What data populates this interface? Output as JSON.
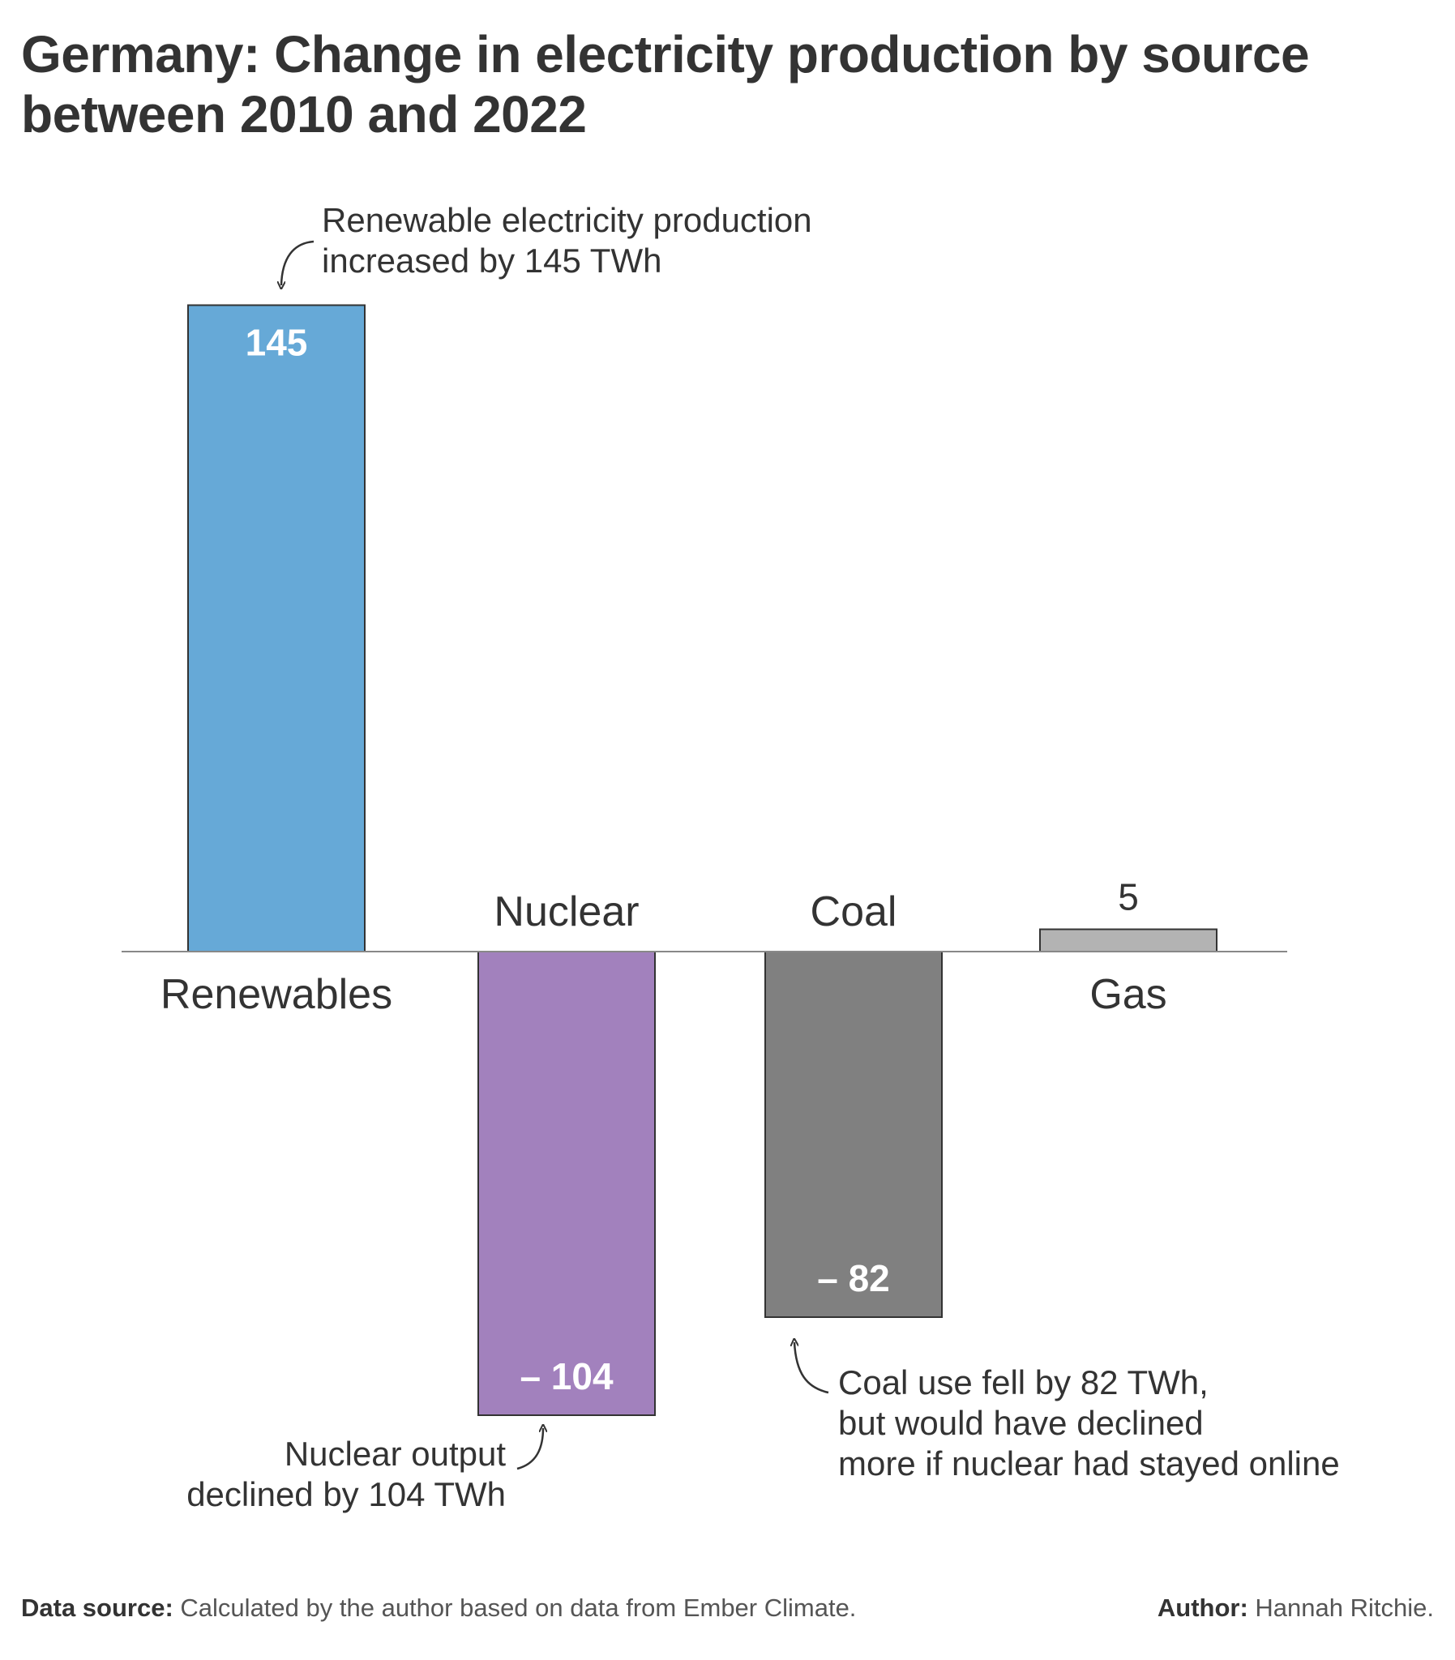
{
  "title": "Germany: Change in electricity production by source between 2010 and 2022",
  "chart_data": {
    "type": "bar",
    "categories": [
      "Renewables",
      "Nuclear",
      "Coal",
      "Gas"
    ],
    "values": [
      145,
      -104,
      -82,
      5
    ],
    "value_labels": [
      "145",
      "– 104",
      "– 82",
      "5"
    ],
    "unit": "TWh",
    "colors": [
      "#66a9d7",
      "#a281bd",
      "#808080",
      "#b3b3b3"
    ],
    "title": "Germany: Change in electricity production by source between 2010 and 2022",
    "xlabel": "",
    "ylabel": "",
    "ylim": [
      -104,
      145
    ],
    "grid": false,
    "legend": "none",
    "annotations": [
      {
        "target": "Renewables",
        "lines": [
          "Renewable electricity production",
          "increased by 145 TWh"
        ]
      },
      {
        "target": "Nuclear",
        "lines": [
          "Nuclear output",
          "declined by 104 TWh"
        ]
      },
      {
        "target": "Coal",
        "lines": [
          "Coal use fell by 82 TWh,",
          "but would have declined",
          "more if nuclear had stayed online"
        ]
      }
    ]
  },
  "footer": {
    "source_label": "Data source:",
    "source_text": "Calculated by the author based on data from Ember Climate.",
    "author_label": "Author:",
    "author_text": "Hannah Ritchie."
  }
}
